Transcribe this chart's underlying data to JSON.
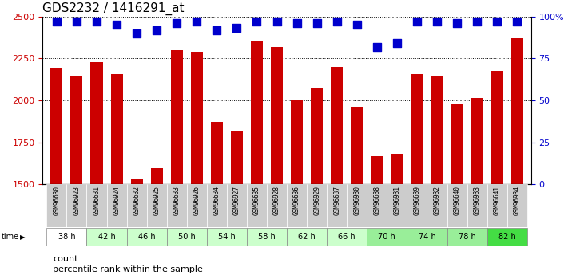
{
  "title": "GDS2232 / 1416291_at",
  "samples": [
    "GSM96630",
    "GSM96923",
    "GSM96631",
    "GSM96924",
    "GSM96632",
    "GSM96925",
    "GSM96633",
    "GSM96926",
    "GSM96634",
    "GSM96927",
    "GSM96635",
    "GSM96928",
    "GSM96636",
    "GSM96929",
    "GSM96637",
    "GSM96930",
    "GSM96638",
    "GSM96931",
    "GSM96639",
    "GSM96932",
    "GSM96640",
    "GSM96933",
    "GSM96641",
    "GSM96934"
  ],
  "counts": [
    2195,
    2145,
    2230,
    2155,
    1530,
    1595,
    2300,
    2290,
    1870,
    1820,
    2350,
    2320,
    2000,
    2070,
    2200,
    1960,
    1665,
    1680,
    2155,
    2145,
    1975,
    2015,
    2175,
    2370
  ],
  "percentile": [
    97,
    97,
    97,
    95,
    90,
    92,
    96,
    97,
    92,
    93,
    97,
    97,
    96,
    96,
    97,
    95,
    82,
    84,
    97,
    97,
    96,
    97,
    97,
    97
  ],
  "time_groups": [
    {
      "label": "38 h",
      "cols": [
        0,
        1
      ],
      "color": "#ffffff"
    },
    {
      "label": "42 h",
      "cols": [
        2,
        3
      ],
      "color": "#ccffcc"
    },
    {
      "label": "46 h",
      "cols": [
        4,
        5
      ],
      "color": "#ccffcc"
    },
    {
      "label": "50 h",
      "cols": [
        6,
        7
      ],
      "color": "#ccffcc"
    },
    {
      "label": "54 h",
      "cols": [
        8,
        9
      ],
      "color": "#ccffcc"
    },
    {
      "label": "58 h",
      "cols": [
        10,
        11
      ],
      "color": "#ccffcc"
    },
    {
      "label": "62 h",
      "cols": [
        12,
        13
      ],
      "color": "#ccffcc"
    },
    {
      "label": "66 h",
      "cols": [
        14,
        15
      ],
      "color": "#ccffcc"
    },
    {
      "label": "70 h",
      "cols": [
        16,
        17
      ],
      "color": "#99ee99"
    },
    {
      "label": "74 h",
      "cols": [
        18,
        19
      ],
      "color": "#99ee99"
    },
    {
      "label": "78 h",
      "cols": [
        20,
        21
      ],
      "color": "#99ee99"
    },
    {
      "label": "82 h",
      "cols": [
        22,
        23
      ],
      "color": "#44dd44"
    }
  ],
  "bar_color": "#cc0000",
  "dot_color": "#0000cc",
  "ylim_left": [
    1500,
    2500
  ],
  "ylim_right": [
    0,
    100
  ],
  "yticks_left": [
    1500,
    1750,
    2000,
    2250,
    2500
  ],
  "yticks_right": [
    0,
    25,
    50,
    75,
    100
  ],
  "ytick_labels_right": [
    "0",
    "25",
    "50",
    "75",
    "100%"
  ],
  "bar_width": 0.6,
  "dot_size": 50,
  "title_fontsize": 11,
  "tick_fontsize": 8,
  "legend_fontsize": 8
}
